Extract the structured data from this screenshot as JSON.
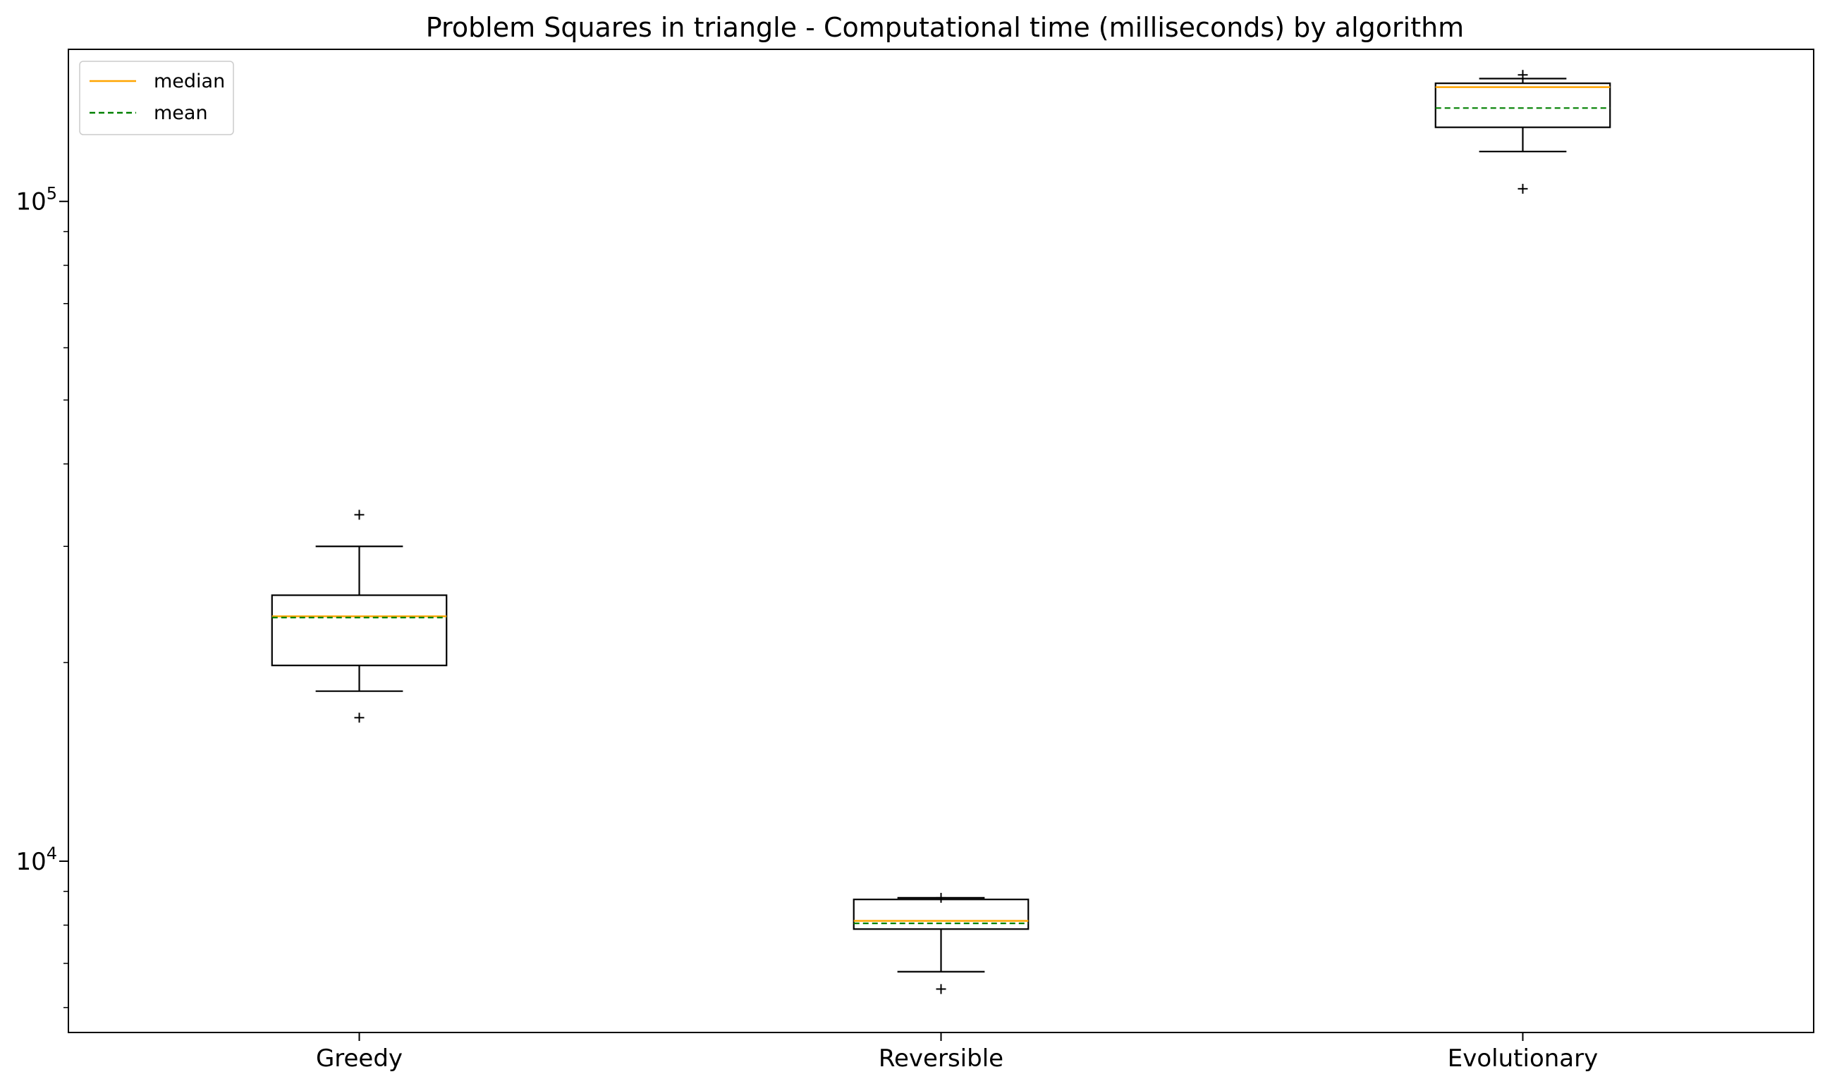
{
  "chart_data": {
    "type": "box",
    "title": "Problem Squares in triangle - Computational time (milliseconds) by algorithm",
    "xlabel": "",
    "ylabel": "",
    "yscale": "log",
    "ylim": [
      5500,
      170000
    ],
    "y_ticks": [
      {
        "value": 10000,
        "base": "10",
        "exp": "4"
      },
      {
        "value": 100000,
        "base": "10",
        "exp": "5"
      }
    ],
    "categories": [
      "Greedy",
      "Reversible",
      "Evolutionary"
    ],
    "legend": {
      "position": "upper left",
      "entries": [
        {
          "label": "median",
          "color": "#FFA500",
          "style": "solid"
        },
        {
          "label": "mean",
          "color": "#008000",
          "style": "dashed"
        }
      ]
    },
    "boxes": [
      {
        "category": "Greedy",
        "whisker_low": 18100,
        "q1": 19800,
        "median": 23500,
        "mean": 23400,
        "q3": 25300,
        "whisker_high": 30000,
        "outliers": [
          16500,
          33500
        ]
      },
      {
        "category": "Reversible",
        "whisker_low": 6800,
        "q1": 7890,
        "median": 8120,
        "mean": 8050,
        "q3": 8750,
        "whisker_high": 8800,
        "outliers": [
          6400,
          8800
        ]
      },
      {
        "category": "Evolutionary",
        "whisker_low": 119000,
        "q1": 129500,
        "median": 149000,
        "mean": 138500,
        "q3": 151000,
        "whisker_high": 153500,
        "outliers": [
          104500,
          155500
        ]
      }
    ],
    "colors": {
      "box": "#000000",
      "median": "#FFA500",
      "mean": "#008000",
      "background": "#FFFFFF"
    }
  }
}
